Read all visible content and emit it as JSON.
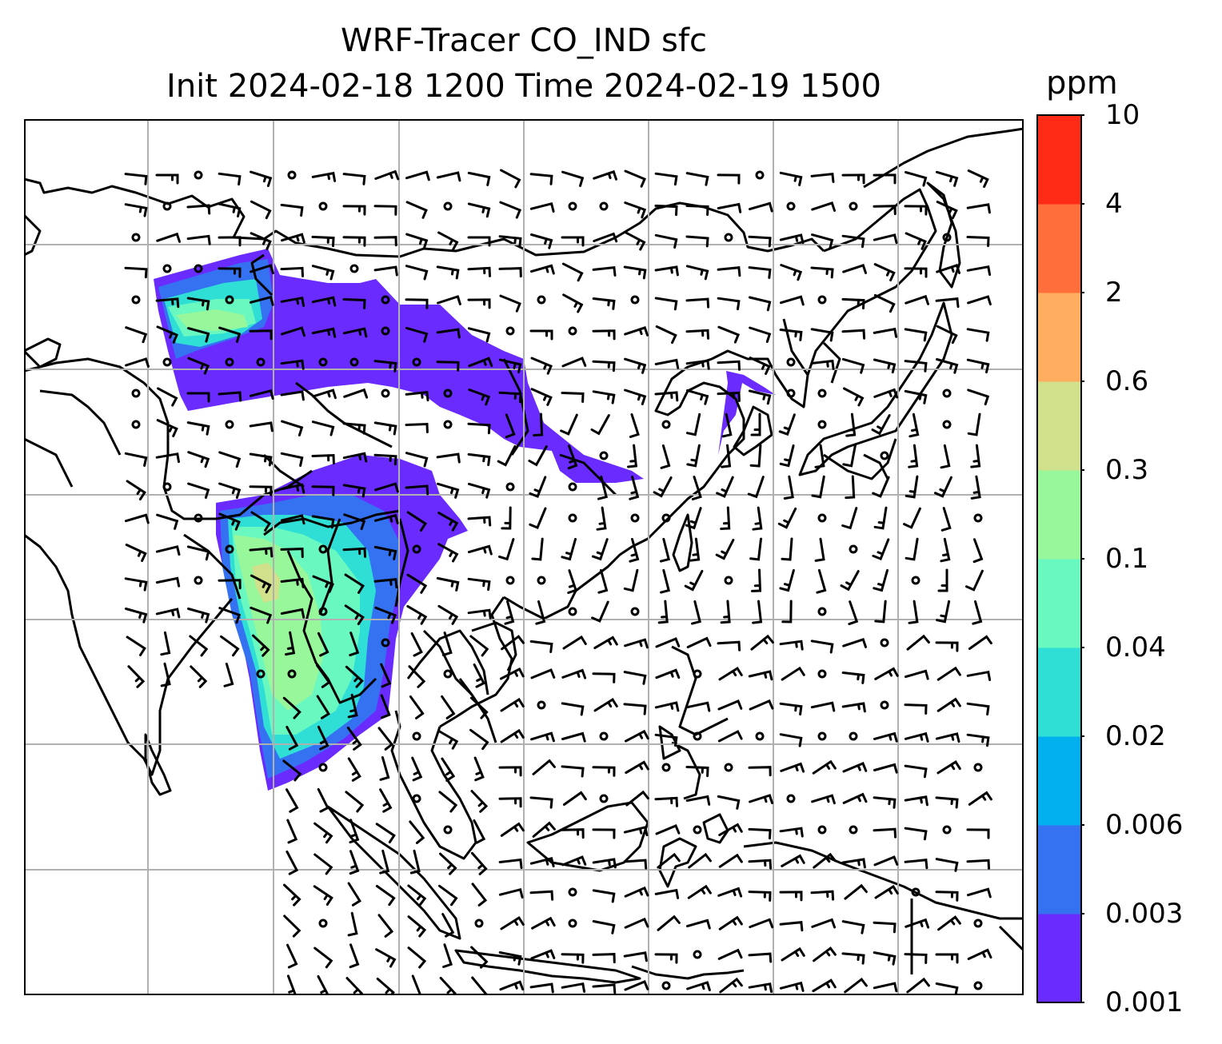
{
  "title": {
    "line1": "WRF-Tracer CO_IND sfc",
    "line2": "Init 2024-02-18 1200 Time 2024-02-19 1500"
  },
  "colorbar": {
    "units": "ppm",
    "ticks": [
      "0.001",
      "0.003",
      "0.006",
      "0.02",
      "0.04",
      "0.1",
      "0.3",
      "0.6",
      "2",
      "4",
      "10"
    ],
    "colors": [
      "#6a2bff",
      "#3572f2",
      "#00b0ee",
      "#2fdfd6",
      "#69f8c0",
      "#98f79a",
      "#d0e08b",
      "#ffad5f",
      "#ff6e3b",
      "#ff2b17"
    ]
  },
  "map": {
    "gridlines": true,
    "wind_barbs": true,
    "tracer_plumes": [
      "northern China / Mongolia plume",
      "Tibet / Yunnan / Myanmar / Thailand plume"
    ]
  }
}
